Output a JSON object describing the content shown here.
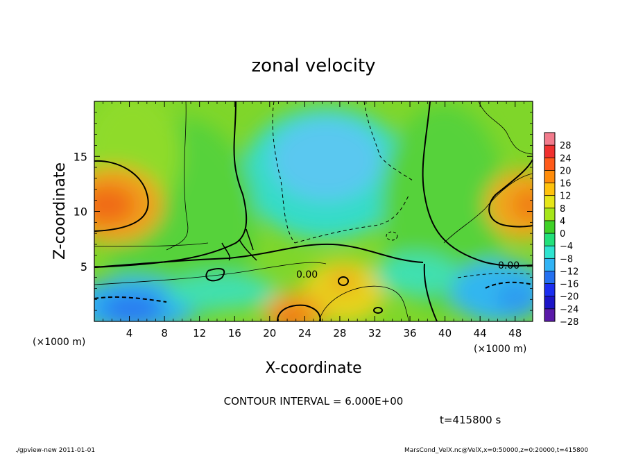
{
  "chart_data": {
    "type": "heatmap",
    "title": "zonal velocity",
    "xlabel": "X-coordinate",
    "ylabel": "Z-coordinate",
    "x_unit": "(×1000 m)",
    "x_unit_right": "(×1000 m)",
    "xlim": [
      0,
      50
    ],
    "ylim": [
      0,
      20
    ],
    "x_ticks": [
      "4",
      "8",
      "12",
      "16",
      "20",
      "24",
      "28",
      "32",
      "36",
      "40",
      "44",
      "48"
    ],
    "x_tick_values": [
      4,
      8,
      12,
      16,
      20,
      24,
      28,
      32,
      36,
      40,
      44,
      48
    ],
    "y_ticks": [
      "5",
      "10",
      "15"
    ],
    "y_tick_values": [
      5,
      10,
      15
    ],
    "colorbar": {
      "labels": [
        "28",
        "24",
        "20",
        "16",
        "12",
        "8",
        "4",
        "0",
        "−4",
        "−8",
        "−12",
        "−16",
        "−20",
        "−24",
        "−28"
      ],
      "levels": [
        30,
        26,
        22,
        18,
        14,
        10,
        6,
        2,
        -2,
        -6,
        -10,
        -14,
        -18,
        -22,
        -26,
        -30
      ],
      "colors": [
        "#f27b8c",
        "#f0302e",
        "#ff5a1a",
        "#ff8c0a",
        "#ffc20d",
        "#e6e619",
        "#a6e61a",
        "#3fd127",
        "#22e07a",
        "#2fe3d0",
        "#31b3f5",
        "#2470f0",
        "#1b2ef0",
        "#1c15c7",
        "#5a1aa8"
      ]
    },
    "contour_interval_text": "CONTOUR INTERVAL = 6.000E+00",
    "contour_labels": [
      "0.00",
      "0.00"
    ],
    "time_text": "t=415800 s",
    "field_hint": {
      "positive_maxima": [
        {
          "x": 2,
          "z": 11,
          "value": 18
        },
        {
          "x": 48,
          "z": 10.5,
          "value": 16
        },
        {
          "x": 23,
          "z": 0.5,
          "value": 18
        },
        {
          "x": 29,
          "z": 3.5,
          "value": 12
        }
      ],
      "negative_minima": [
        {
          "x": 26,
          "z": 14,
          "value": -10
        },
        {
          "x": 5,
          "z": 1.5,
          "value": -12
        },
        {
          "x": 47,
          "z": 2,
          "value": -12
        }
      ]
    }
  },
  "footer": {
    "left": "./gpview-new 2011-01-01",
    "right": "MarsCond_VelX.nc@VelX,x=0:50000,z=0:20000,t=415800"
  }
}
